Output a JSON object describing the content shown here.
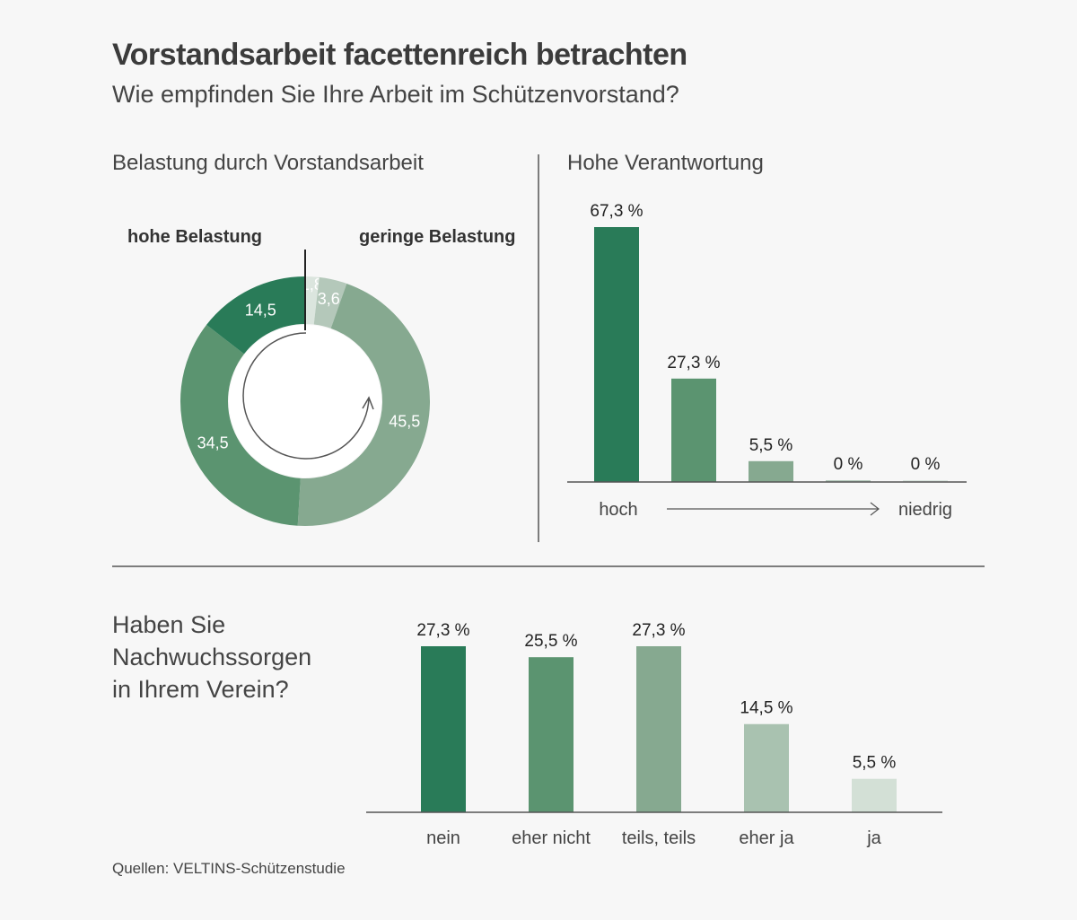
{
  "header": {
    "title": "Vorstandsarbeit facettenreich betrachten",
    "subtitle": "Wie empfinden Sie Ihre Arbeit im Schützenvorstand?"
  },
  "source": "Quellen: VELTINS-Schützenstudie",
  "chart_data": [
    {
      "type": "pie",
      "title": "Belastung durch Vorstandsarbeit",
      "label_high": "hohe Belastung",
      "label_low": "geringe Belastung",
      "direction": "clockwise",
      "slices": [
        {
          "label": "1,8",
          "value": 1.8,
          "color": "#dbe5de"
        },
        {
          "label": "3,6",
          "value": 3.6,
          "color": "#b4c8ba"
        },
        {
          "label": "45,5",
          "value": 45.5,
          "color": "#86a990"
        },
        {
          "label": "34,5",
          "value": 34.5,
          "color": "#5b9470"
        },
        {
          "label": "14,5",
          "value": 14.5,
          "color": "#297b58"
        }
      ]
    },
    {
      "type": "bar",
      "title": "Hohe Verantwortung",
      "categories": [
        "hoch",
        "",
        "",
        "",
        "niedrig"
      ],
      "axis_label_left": "hoch",
      "axis_label_right": "niedrig",
      "values": [
        67.3,
        27.3,
        5.5,
        0,
        0
      ],
      "value_labels": [
        "67,3 %",
        "27,3 %",
        "5,5 %",
        "0 %",
        "0 %"
      ],
      "colors": [
        "#297b58",
        "#5b9470",
        "#86a990",
        "#b4c8ba",
        "#dbe5de"
      ],
      "ylim": [
        0,
        67.3
      ]
    },
    {
      "type": "bar",
      "title_lines": [
        "Haben Sie",
        "Nachwuchssorgen",
        "in Ihrem Verein?"
      ],
      "categories": [
        "nein",
        "eher nicht",
        "teils, teils",
        "eher ja",
        "ja"
      ],
      "values": [
        27.3,
        25.5,
        27.3,
        14.5,
        5.5
      ],
      "value_labels": [
        "27,3 %",
        "25,5 %",
        "27,3 %",
        "14,5 %",
        "5,5 %"
      ],
      "colors": [
        "#297b58",
        "#5b9470",
        "#86a990",
        "#a9c2b0",
        "#d3e0d6"
      ],
      "ylim": [
        0,
        27.3
      ]
    }
  ]
}
